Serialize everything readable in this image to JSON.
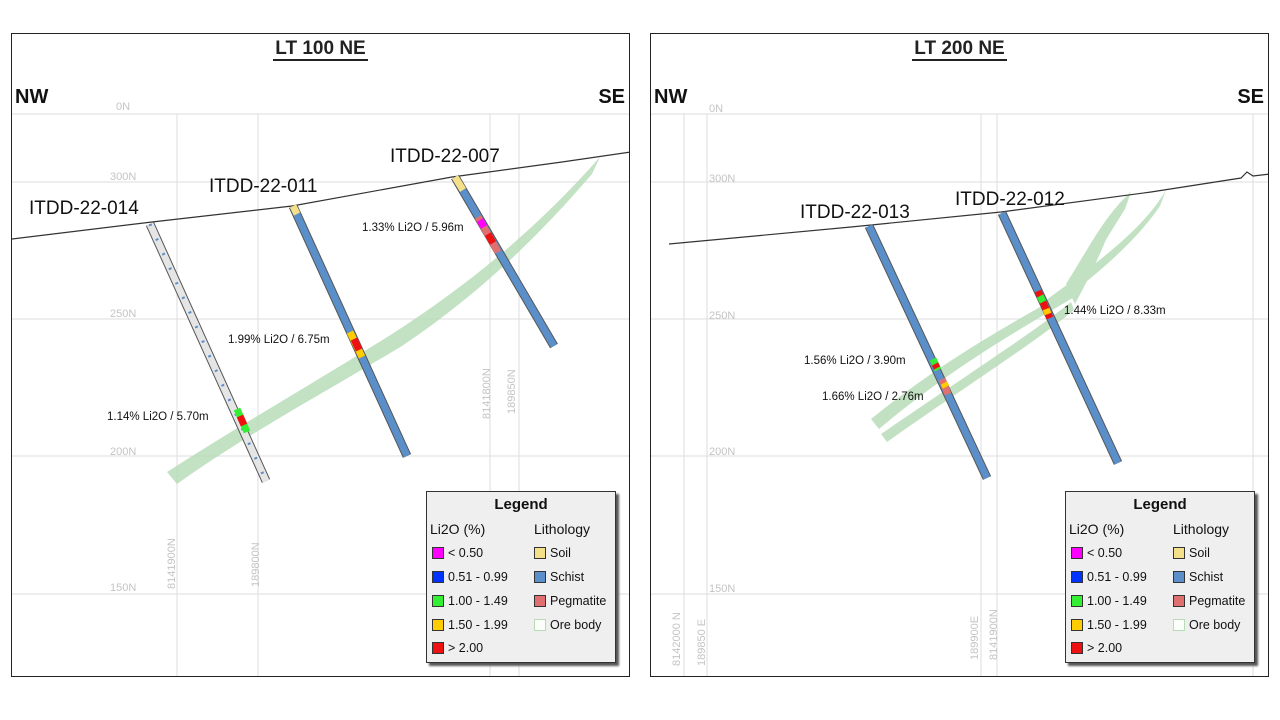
{
  "panels": [
    {
      "title": "LT 100 NE",
      "nw": "NW",
      "se": "SE",
      "elevations": [
        "0N",
        "300N",
        "250N",
        "200N",
        "150N"
      ],
      "grid_labels": [
        "8141900N",
        "189800N",
        "8141800N",
        "189850N"
      ],
      "holes": [
        "ITDD-22-014",
        "ITDD-22-011",
        "ITDD-22-007"
      ],
      "intercepts": [
        "1.33% Li2O / 5.96m",
        "1.99% Li2O / 6.75m",
        "1.14% Li2O / 5.70m"
      ]
    },
    {
      "title": "LT 200 NE",
      "nw": "NW",
      "se": "SE",
      "elevations": [
        "0N",
        "300N",
        "250N",
        "200N",
        "150N"
      ],
      "grid_labels": [
        "8142000 N",
        "189850 E",
        "189900E",
        "8141900N"
      ],
      "holes": [
        "ITDD-22-013",
        "ITDD-22-012"
      ],
      "intercepts": [
        "1.56% Li2O / 3.90m",
        "1.66% Li2O / 2.76m",
        "1.44% Li2O / 8.33m"
      ]
    }
  ],
  "legend": {
    "title": "Legend",
    "li2o_header": "Li2O (%)",
    "litho_header": "Lithology",
    "li2o_items": [
      {
        "label": "< 0.50",
        "color": "#ff00ff"
      },
      {
        "label": "0.51 - 0.99",
        "color": "#0033ff"
      },
      {
        "label": "1.00 - 1.49",
        "color": "#33ee33"
      },
      {
        "label": "1.50 - 1.99",
        "color": "#ffcc00"
      },
      {
        "label": "> 2.00",
        "color": "#ee1111"
      }
    ],
    "litho_items": [
      {
        "label": "Soil",
        "color": "#f5e08a"
      },
      {
        "label": "Schist",
        "color": "#5b8fc9"
      },
      {
        "label": "Pegmatite",
        "color": "#e07070"
      },
      {
        "label": "Ore body",
        "color": "#b8dcb8"
      }
    ]
  },
  "colors": {
    "ore_body": "#b8dcb8",
    "schist": "#5b8fc9",
    "grid": "#dedede",
    "topography": "#333333"
  }
}
